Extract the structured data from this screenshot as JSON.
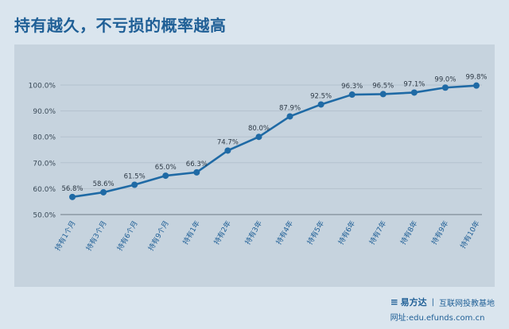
{
  "title": "持有越久，不亏损的概率越高",
  "footer": {
    "logo_mark": "≡",
    "logo_text": "易方达",
    "separator": "|",
    "tagline": "互联网投教基地",
    "site_label": "网址:",
    "site_url": "edu.efunds.com.cn"
  },
  "colors": {
    "line": "#1f6aa5",
    "title": "#1f5f96",
    "panel": "#c6d3de",
    "background": "#dae5ee"
  },
  "chart_data": {
    "type": "line",
    "title": "",
    "xlabel": "",
    "ylabel": "",
    "categories": [
      "持有1个月",
      "持有3个月",
      "持有6个月",
      "持有9个月",
      "持有1年",
      "持有2年",
      "持有3年",
      "持有4年",
      "持有5年",
      "持有6年",
      "持有7年",
      "持有8年",
      "持有9年",
      "持有10年"
    ],
    "series": [
      {
        "values": [
          56.8,
          58.6,
          61.5,
          65.0,
          66.3,
          74.7,
          80.0,
          87.9,
          92.5,
          96.3,
          96.5,
          97.1,
          99.0,
          99.8
        ]
      }
    ],
    "value_labels": [
      "56.8%",
      "58.6%",
      "61.5%",
      "65.0%",
      "66.3%",
      "74.7%",
      "80.0%",
      "87.9%",
      "92.5%",
      "96.3%",
      "96.5%",
      "97.1%",
      "99.0%",
      "99.8%"
    ],
    "y_ticks": [
      50,
      60,
      70,
      80,
      90,
      100
    ],
    "y_tick_labels": [
      "50.0%",
      "60.0%",
      "70.0%",
      "80.0%",
      "90.0%",
      "100.0%"
    ],
    "ylim": [
      50,
      100
    ],
    "grid": true,
    "legend": "none"
  }
}
